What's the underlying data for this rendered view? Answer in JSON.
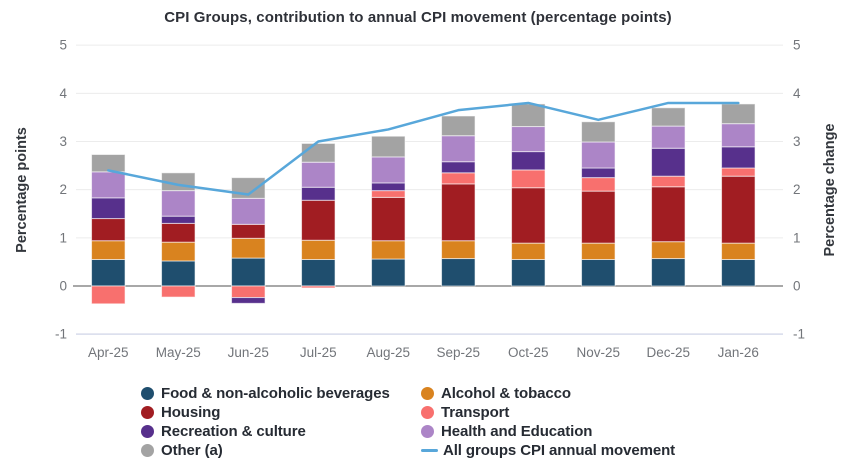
{
  "title": "CPI Groups, contribution to annual CPI movement (percentage points)",
  "y_axis_left": {
    "label": "Percentage points",
    "ticks": [
      5,
      4,
      3,
      2,
      1,
      0,
      -1
    ]
  },
  "y_axis_right": {
    "label": "Percentage change",
    "ticks": [
      5,
      4,
      3,
      2,
      1,
      0,
      -1
    ]
  },
  "chart_data": {
    "type": "bar",
    "subtype": "stacked-bar-with-line",
    "categories": [
      "Apr-25",
      "May-25",
      "Jun-25",
      "Jul-25",
      "Aug-25",
      "Sep-25",
      "Oct-25",
      "Nov-25",
      "Dec-25",
      "Jan-26"
    ],
    "series": [
      {
        "name": "Food & non-alcoholic beverages",
        "color": "#1f4e6e",
        "values": [
          0.55,
          0.52,
          0.58,
          0.55,
          0.56,
          0.57,
          0.55,
          0.55,
          0.57,
          0.55
        ]
      },
      {
        "name": "Alcohol & tobacco",
        "color": "#d9831f",
        "values": [
          0.39,
          0.39,
          0.41,
          0.4,
          0.38,
          0.37,
          0.34,
          0.34,
          0.35,
          0.34
        ]
      },
      {
        "name": "Housing",
        "color": "#a11d22",
        "values": [
          0.46,
          0.39,
          0.29,
          0.83,
          0.9,
          1.18,
          1.15,
          1.08,
          1.14,
          1.39
        ]
      },
      {
        "name": "Transport",
        "color": "#f8706e",
        "values": [
          -0.37,
          -0.23,
          -0.24,
          -0.04,
          0.14,
          0.23,
          0.37,
          0.28,
          0.22,
          0.17
        ]
      },
      {
        "name": "Recreation & culture",
        "color": "#57308c",
        "values": [
          0.43,
          0.15,
          -0.12,
          0.27,
          0.16,
          0.23,
          0.38,
          0.2,
          0.58,
          0.44
        ]
      },
      {
        "name": "Health and Education",
        "color": "#ac85c7",
        "values": [
          0.54,
          0.53,
          0.54,
          0.52,
          0.54,
          0.54,
          0.52,
          0.54,
          0.46,
          0.48
        ]
      },
      {
        "name": "Other (a)",
        "color": "#a3a3a3",
        "values": [
          0.36,
          0.37,
          0.43,
          0.39,
          0.43,
          0.41,
          0.47,
          0.42,
          0.38,
          0.41
        ]
      }
    ],
    "line_series": {
      "name": "All groups CPI annual movement",
      "color": "#58a7da",
      "values": [
        2.4,
        2.1,
        1.9,
        3.0,
        3.25,
        3.65,
        3.8,
        3.45,
        3.8,
        3.8
      ]
    },
    "ylim": [
      -1,
      5
    ],
    "grid": true,
    "legend_position": "bottom"
  },
  "legend": {
    "columns": [
      [
        "Food & non-alcoholic beverages",
        "Housing",
        "Recreation & culture",
        "Other (a)"
      ],
      [
        "Alcohol & tobacco",
        "Transport",
        "Health and Education",
        "All groups CPI annual movement"
      ]
    ]
  },
  "style_colors": {
    "grid_line": "#ececec",
    "zero_line": "#a8a8a8",
    "bottom_line": "#d7dbeb",
    "segment_border": "rgba(255,255,255,0.6)"
  }
}
